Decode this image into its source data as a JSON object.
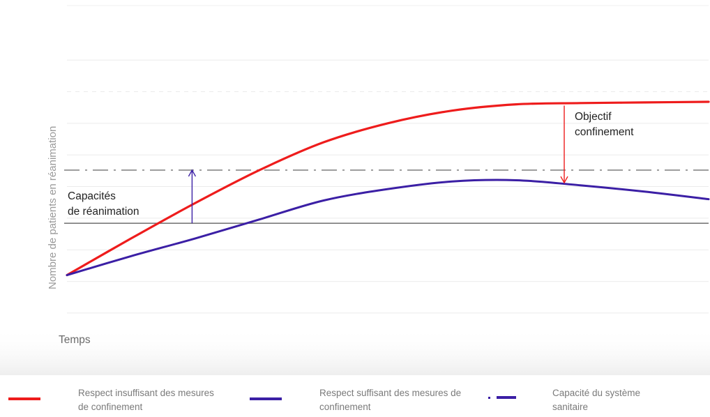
{
  "chart_data": {
    "type": "line",
    "title": "",
    "xlabel": "Temps",
    "ylabel": "Nombre de patients en réanimation",
    "grid": true,
    "legend_position": "bottom",
    "series": [
      {
        "name": "Respect insuffisant des mesures de confinement",
        "color": "#ee1c1c",
        "x": [
          0,
          0.1,
          0.2,
          0.3,
          0.4,
          0.5,
          0.6,
          0.7,
          0.8,
          0.9,
          1.0
        ],
        "values": [
          0.05,
          0.34,
          0.62,
          0.88,
          1.1,
          1.25,
          1.35,
          1.4,
          1.41,
          1.415,
          1.42
        ]
      },
      {
        "name": "Respect suffisant des mesures de confinement",
        "color": "#3b1fa5",
        "x": [
          0,
          0.1,
          0.2,
          0.3,
          0.4,
          0.5,
          0.6,
          0.7,
          0.8,
          0.9,
          1.0
        ],
        "values": [
          0.05,
          0.2,
          0.34,
          0.49,
          0.64,
          0.73,
          0.79,
          0.8,
          0.76,
          0.71,
          0.65
        ]
      }
    ],
    "reference_lines": [
      {
        "name": "Capacité du système sanitaire",
        "value": 0.88,
        "style": "dash-dot",
        "color": "#a0a0a0"
      },
      {
        "name": "",
        "value": 0.46,
        "style": "solid",
        "color": "#7a7a7a"
      }
    ],
    "annotations": [
      {
        "text": "Capacités\nde réanimation",
        "arrow_x": 0.195,
        "from": 0.46,
        "to": 0.88,
        "color": "#3b1fa5"
      },
      {
        "text": "Objectif\nconfinement",
        "arrow_x": 0.775,
        "from": 1.39,
        "to": 0.78,
        "color": "#ee1c1c"
      }
    ],
    "xlim": [
      0,
      1
    ],
    "ylim": [
      -0.3,
      1.85
    ]
  }
}
